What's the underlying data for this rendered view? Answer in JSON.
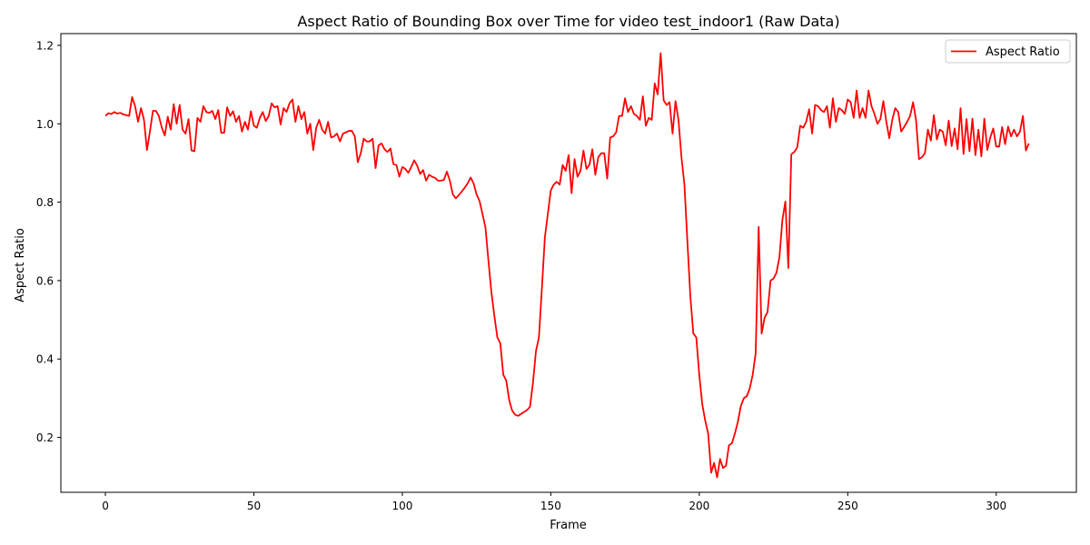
{
  "chart_data": {
    "type": "line",
    "title": "Aspect Ratio of Bounding Box over Time for video test_indoor1 (Raw Data)",
    "xlabel": "Frame",
    "ylabel": "Aspect Ratio",
    "xlim": [
      -15,
      327
    ],
    "ylim": [
      0.06,
      1.23
    ],
    "xticks": [
      0,
      50,
      100,
      150,
      200,
      250,
      300
    ],
    "yticks": [
      0.2,
      0.4,
      0.6,
      0.8,
      1.0,
      1.2
    ],
    "xtick_labels": [
      "0",
      "50",
      "100",
      "150",
      "200",
      "250",
      "300"
    ],
    "ytick_labels": [
      "0.2",
      "0.4",
      "0.6",
      "0.8",
      "1.0",
      "1.2"
    ],
    "grid": false,
    "legend": {
      "position": "top-right",
      "entries": [
        "Aspect Ratio"
      ]
    },
    "series": [
      {
        "name": "Aspect Ratio",
        "color": "#ff0000",
        "x": [
          0,
          1,
          2,
          3,
          4,
          5,
          6,
          7,
          8,
          9,
          10,
          11,
          12,
          13,
          14,
          15,
          16,
          17,
          18,
          19,
          20,
          21,
          22,
          23,
          24,
          25,
          26,
          27,
          28,
          29,
          30,
          31,
          32,
          33,
          34,
          35,
          36,
          37,
          38,
          39,
          40,
          41,
          42,
          43,
          44,
          45,
          46,
          47,
          48,
          49,
          50,
          51,
          52,
          53,
          54,
          55,
          56,
          57,
          58,
          59,
          60,
          61,
          62,
          63,
          64,
          65,
          66,
          67,
          68,
          69,
          70,
          71,
          72,
          73,
          74,
          75,
          76,
          77,
          78,
          79,
          80,
          81,
          82,
          83,
          84,
          85,
          86,
          87,
          88,
          89,
          90,
          91,
          92,
          93,
          94,
          95,
          96,
          97,
          98,
          99,
          100,
          101,
          102,
          103,
          104,
          105,
          106,
          107,
          108,
          109,
          110,
          111,
          112,
          113,
          114,
          115,
          116,
          117,
          118,
          119,
          120,
          121,
          122,
          123,
          124,
          125,
          126,
          127,
          128,
          129,
          130,
          131,
          132,
          133,
          134,
          135,
          136,
          137,
          138,
          139,
          140,
          141,
          142,
          143,
          144,
          145,
          146,
          147,
          148,
          149,
          150,
          151,
          152,
          153,
          154,
          155,
          156,
          157,
          158,
          159,
          160,
          161,
          162,
          163,
          164,
          165,
          166,
          167,
          168,
          169,
          170,
          171,
          172,
          173,
          174,
          175,
          176,
          177,
          178,
          179,
          180,
          181,
          182,
          183,
          184,
          185,
          186,
          187,
          188,
          189,
          190,
          191,
          192,
          193,
          194,
          195,
          196,
          197,
          198,
          199,
          200,
          201,
          202,
          203,
          204,
          205,
          206,
          207,
          208,
          209,
          210,
          211,
          212,
          213,
          214,
          215,
          216,
          217,
          218,
          219,
          220,
          221,
          222,
          223,
          224,
          225,
          226,
          227,
          228,
          229,
          230,
          231,
          232,
          233,
          234,
          235,
          236,
          237,
          238,
          239,
          240,
          241,
          242,
          243,
          244,
          245,
          246,
          247,
          248,
          249,
          250,
          251,
          252,
          253,
          254,
          255,
          256,
          257,
          258,
          259,
          260,
          261,
          262,
          263,
          264,
          265,
          266,
          267,
          268,
          269,
          270,
          271,
          272,
          273,
          274,
          275,
          276,
          277,
          278,
          279,
          280,
          281,
          282,
          283,
          284,
          285,
          286,
          287,
          288,
          289,
          290,
          291,
          292,
          293,
          294,
          295,
          296,
          297,
          298,
          299,
          300,
          301,
          302,
          303,
          304,
          305,
          306,
          307,
          308,
          309,
          310,
          311
        ],
        "y": [
          1.02,
          1.027,
          1.025,
          1.03,
          1.026,
          1.028,
          1.024,
          1.022,
          1.02,
          1.068,
          1.045,
          1.005,
          1.04,
          1.01,
          0.933,
          0.98,
          1.033,
          1.033,
          1.02,
          0.99,
          0.97,
          1.018,
          0.985,
          1.05,
          1.0,
          1.048,
          0.985,
          0.975,
          1.012,
          0.932,
          0.93,
          1.015,
          1.005,
          1.045,
          1.03,
          1.028,
          1.033,
          1.012,
          1.035,
          0.977,
          0.977,
          1.042,
          1.02,
          1.032,
          1.005,
          1.02,
          0.98,
          1.005,
          0.985,
          1.032,
          0.995,
          0.99,
          1.015,
          1.03,
          1.007,
          1.02,
          1.052,
          1.042,
          1.045,
          0.998,
          1.04,
          1.03,
          1.052,
          1.062,
          1.005,
          1.045,
          1.012,
          1.03,
          0.975,
          1.0,
          0.933,
          0.99,
          1.01,
          0.985,
          0.975,
          1.005,
          0.965,
          0.968,
          0.975,
          0.955,
          0.975,
          0.978,
          0.982,
          0.982,
          0.968,
          0.902,
          0.925,
          0.962,
          0.955,
          0.955,
          0.962,
          0.887,
          0.945,
          0.95,
          0.935,
          0.928,
          0.937,
          0.897,
          0.895,
          0.865,
          0.89,
          0.885,
          0.875,
          0.89,
          0.907,
          0.893,
          0.872,
          0.882,
          0.855,
          0.87,
          0.865,
          0.862,
          0.855,
          0.855,
          0.857,
          0.878,
          0.855,
          0.82,
          0.81,
          0.818,
          0.827,
          0.837,
          0.848,
          0.863,
          0.848,
          0.82,
          0.803,
          0.77,
          0.735,
          0.65,
          0.57,
          0.51,
          0.455,
          0.44,
          0.36,
          0.345,
          0.295,
          0.268,
          0.258,
          0.255,
          0.26,
          0.265,
          0.27,
          0.278,
          0.34,
          0.42,
          0.455,
          0.58,
          0.71,
          0.77,
          0.83,
          0.845,
          0.852,
          0.845,
          0.895,
          0.88,
          0.92,
          0.823,
          0.91,
          0.865,
          0.88,
          0.932,
          0.885,
          0.895,
          0.935,
          0.87,
          0.915,
          0.925,
          0.925,
          0.86,
          0.965,
          0.968,
          0.978,
          1.02,
          1.02,
          1.065,
          1.03,
          1.045,
          1.025,
          1.02,
          1.01,
          1.07,
          0.995,
          1.015,
          1.01,
          1.103,
          1.075,
          1.18,
          1.06,
          1.048,
          1.055,
          0.975,
          1.058,
          1.01,
          0.915,
          0.845,
          0.7,
          0.56,
          0.465,
          0.455,
          0.36,
          0.285,
          0.243,
          0.21,
          0.11,
          0.135,
          0.098,
          0.145,
          0.122,
          0.128,
          0.18,
          0.185,
          0.21,
          0.24,
          0.28,
          0.3,
          0.305,
          0.325,
          0.36,
          0.415,
          0.737,
          0.465,
          0.505,
          0.52,
          0.6,
          0.605,
          0.62,
          0.66,
          0.755,
          0.802,
          0.632,
          0.922,
          0.928,
          0.94,
          0.995,
          0.99,
          1.005,
          1.037,
          0.975,
          1.048,
          1.045,
          1.035,
          1.03,
          1.045,
          0.99,
          1.065,
          1.005,
          1.04,
          1.035,
          1.025,
          1.062,
          1.055,
          1.015,
          1.085,
          1.015,
          1.04,
          1.015,
          1.085,
          1.045,
          1.025,
          1.0,
          1.012,
          1.058,
          1.005,
          0.963,
          1.01,
          1.04,
          1.03,
          0.98,
          0.992,
          1.005,
          1.02,
          1.055,
          1.01,
          0.91,
          0.915,
          0.925,
          0.985,
          0.957,
          1.022,
          0.96,
          0.985,
          0.98,
          0.945,
          1.008,
          0.943,
          0.988,
          0.935,
          1.04,
          0.923,
          1.012,
          0.93,
          1.013,
          0.92,
          0.985,
          0.917,
          1.013,
          0.933,
          0.965,
          0.988,
          0.942,
          0.942,
          0.992,
          0.948,
          0.993,
          0.968,
          0.985,
          0.968,
          0.98,
          1.02,
          0.932,
          0.95
        ]
      }
    ]
  }
}
